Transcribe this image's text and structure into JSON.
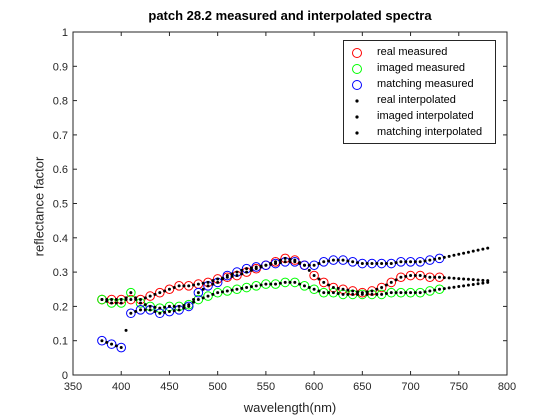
{
  "chart_data": {
    "type": "scatter",
    "title": "patch 28.2 measured and interpolated spectra",
    "xlabel": "wavelength(nm)",
    "ylabel": "reflectance factor",
    "xlim": [
      350,
      800
    ],
    "ylim": [
      0,
      1
    ],
    "xticks": [
      350,
      400,
      450,
      500,
      550,
      600,
      650,
      700,
      750,
      800
    ],
    "yticks": [
      0,
      0.1,
      0.2,
      0.3,
      0.4,
      0.5,
      0.6,
      0.7,
      0.8,
      0.9,
      1
    ],
    "grid": false,
    "legend_position": "top-right",
    "series": [
      {
        "name": "real measured",
        "marker": "circle-open",
        "color": "#ff0000",
        "x": [
          380,
          390,
          400,
          410,
          420,
          430,
          440,
          450,
          460,
          470,
          480,
          490,
          500,
          510,
          520,
          530,
          540,
          550,
          560,
          570,
          580,
          590,
          600,
          610,
          620,
          630,
          640,
          650,
          660,
          670,
          680,
          690,
          700,
          710,
          720,
          730
        ],
        "y": [
          0.22,
          0.22,
          0.22,
          0.22,
          0.22,
          0.23,
          0.24,
          0.25,
          0.26,
          0.26,
          0.265,
          0.27,
          0.28,
          0.285,
          0.29,
          0.3,
          0.31,
          0.32,
          0.33,
          0.34,
          0.335,
          0.32,
          0.29,
          0.27,
          0.255,
          0.25,
          0.245,
          0.24,
          0.245,
          0.255,
          0.27,
          0.285,
          0.29,
          0.29,
          0.285,
          0.285
        ]
      },
      {
        "name": "imaged measured",
        "marker": "circle-open",
        "color": "#00ff00",
        "x": [
          380,
          390,
          400,
          410,
          420,
          430,
          440,
          450,
          460,
          470,
          480,
          490,
          500,
          510,
          520,
          530,
          540,
          550,
          560,
          570,
          580,
          590,
          600,
          610,
          620,
          630,
          640,
          650,
          660,
          670,
          680,
          690,
          700,
          710,
          720,
          730
        ],
        "y": [
          0.22,
          0.21,
          0.21,
          0.24,
          0.21,
          0.2,
          0.195,
          0.2,
          0.2,
          0.205,
          0.22,
          0.23,
          0.24,
          0.245,
          0.25,
          0.255,
          0.26,
          0.265,
          0.265,
          0.27,
          0.27,
          0.26,
          0.25,
          0.24,
          0.24,
          0.235,
          0.235,
          0.235,
          0.235,
          0.235,
          0.24,
          0.24,
          0.24,
          0.24,
          0.245,
          0.25
        ]
      },
      {
        "name": "matching measured",
        "marker": "circle-open",
        "color": "#0000ff",
        "x": [
          380,
          390,
          400,
          410,
          420,
          430,
          440,
          450,
          460,
          470,
          480,
          490,
          500,
          510,
          520,
          530,
          540,
          550,
          560,
          570,
          580,
          590,
          600,
          610,
          620,
          630,
          640,
          650,
          660,
          670,
          680,
          690,
          700,
          710,
          720,
          730
        ],
        "y": [
          0.1,
          0.09,
          0.08,
          0.18,
          0.19,
          0.19,
          0.18,
          0.185,
          0.19,
          0.2,
          0.24,
          0.26,
          0.27,
          0.29,
          0.3,
          0.31,
          0.315,
          0.32,
          0.325,
          0.33,
          0.33,
          0.32,
          0.32,
          0.33,
          0.335,
          0.335,
          0.33,
          0.325,
          0.325,
          0.325,
          0.325,
          0.33,
          0.33,
          0.33,
          0.335,
          0.34
        ]
      },
      {
        "name": "real interpolated",
        "marker": "dot",
        "color": "#000000",
        "x_start": 380,
        "x_end": 780,
        "x_step": 5,
        "y": [
          0.22,
          0.22,
          0.22,
          0.22,
          0.22,
          0.22,
          0.22,
          0.22,
          0.22,
          0.225,
          0.23,
          0.235,
          0.24,
          0.245,
          0.25,
          0.255,
          0.26,
          0.26,
          0.26,
          0.2625,
          0.265,
          0.2675,
          0.27,
          0.275,
          0.28,
          0.2825,
          0.285,
          0.2875,
          0.29,
          0.295,
          0.3,
          0.305,
          0.31,
          0.315,
          0.32,
          0.325,
          0.33,
          0.335,
          0.34,
          0.3375,
          0.335,
          0.3275,
          0.32,
          0.305,
          0.29,
          0.28,
          0.27,
          0.2625,
          0.255,
          0.2525,
          0.25,
          0.2475,
          0.245,
          0.2425,
          0.24,
          0.2425,
          0.245,
          0.25,
          0.255,
          0.2625,
          0.27,
          0.2775,
          0.285,
          0.2875,
          0.29,
          0.29,
          0.29,
          0.2875,
          0.285,
          0.285,
          0.285,
          0.284,
          0.283,
          0.282,
          0.281,
          0.28,
          0.279,
          0.278,
          0.277,
          0.276,
          0.275
        ]
      },
      {
        "name": "imaged interpolated",
        "marker": "dot",
        "color": "#000000",
        "x_start": 380,
        "x_end": 780,
        "x_step": 5,
        "y": [
          0.22,
          0.215,
          0.21,
          0.21,
          0.21,
          0.225,
          0.24,
          0.225,
          0.21,
          0.205,
          0.2,
          0.1975,
          0.195,
          0.1975,
          0.2,
          0.2,
          0.2,
          0.2025,
          0.205,
          0.2125,
          0.22,
          0.225,
          0.23,
          0.235,
          0.24,
          0.2425,
          0.245,
          0.2475,
          0.25,
          0.2525,
          0.255,
          0.2575,
          0.26,
          0.2625,
          0.265,
          0.265,
          0.265,
          0.2675,
          0.27,
          0.27,
          0.27,
          0.265,
          0.26,
          0.255,
          0.25,
          0.245,
          0.24,
          0.24,
          0.24,
          0.2375,
          0.235,
          0.235,
          0.235,
          0.235,
          0.235,
          0.235,
          0.235,
          0.235,
          0.235,
          0.2375,
          0.24,
          0.24,
          0.24,
          0.24,
          0.24,
          0.24,
          0.24,
          0.2425,
          0.245,
          0.2475,
          0.25,
          0.252,
          0.254,
          0.256,
          0.258,
          0.26,
          0.262,
          0.264,
          0.266,
          0.268,
          0.27
        ]
      },
      {
        "name": "matching interpolated",
        "marker": "dot",
        "color": "#000000",
        "x_start": 380,
        "x_end": 780,
        "x_step": 5,
        "y": [
          0.1,
          0.095,
          0.09,
          0.085,
          0.08,
          0.13,
          0.18,
          0.185,
          0.19,
          0.19,
          0.19,
          0.185,
          0.18,
          0.1825,
          0.185,
          0.1875,
          0.19,
          0.195,
          0.2,
          0.22,
          0.24,
          0.25,
          0.26,
          0.265,
          0.27,
          0.28,
          0.29,
          0.295,
          0.3,
          0.305,
          0.31,
          0.3125,
          0.315,
          0.3175,
          0.32,
          0.3225,
          0.325,
          0.3275,
          0.33,
          0.33,
          0.33,
          0.325,
          0.32,
          0.32,
          0.32,
          0.325,
          0.33,
          0.3325,
          0.335,
          0.335,
          0.335,
          0.3325,
          0.33,
          0.3275,
          0.325,
          0.325,
          0.325,
          0.325,
          0.325,
          0.325,
          0.325,
          0.3275,
          0.33,
          0.33,
          0.33,
          0.33,
          0.33,
          0.3325,
          0.335,
          0.3375,
          0.34,
          0.343,
          0.346,
          0.349,
          0.352,
          0.355,
          0.358,
          0.361,
          0.364,
          0.367,
          0.37
        ]
      }
    ]
  }
}
